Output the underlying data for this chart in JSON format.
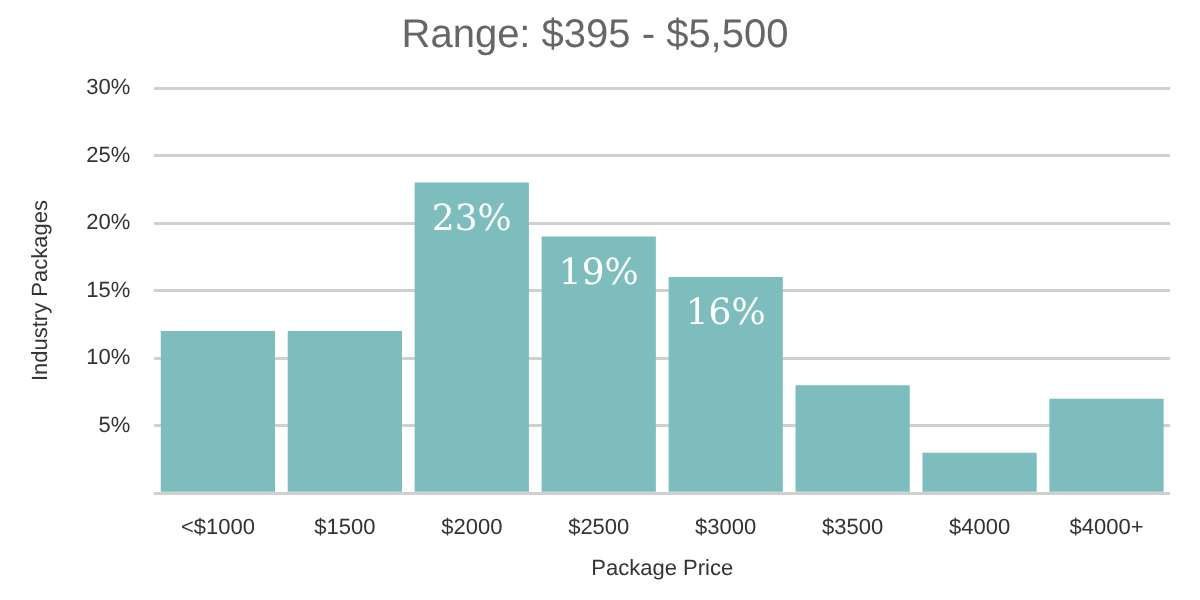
{
  "chart_data": {
    "type": "bar",
    "title": "Range: $395 - $5,500",
    "xlabel": "Package Price",
    "ylabel": "Industry Packages",
    "categories": [
      "<$1000",
      "$1500",
      "$2000",
      "$2500",
      "$3000",
      "$3500",
      "$4000",
      "$4000+"
    ],
    "values": [
      12,
      12,
      23,
      19,
      16,
      8,
      3,
      7
    ],
    "value_labels": [
      null,
      null,
      "23%",
      "19%",
      "16%",
      null,
      null,
      null
    ],
    "color": "#7dbdbd",
    "ylim": [
      0,
      30
    ],
    "yticks": [
      {
        "value": 0,
        "label": null
      },
      {
        "value": 5,
        "label": "5%"
      },
      {
        "value": 10,
        "label": "10%"
      },
      {
        "value": 15,
        "label": "15%"
      },
      {
        "value": 20,
        "label": "20%"
      },
      {
        "value": 25,
        "label": "25%"
      },
      {
        "value": 30,
        "label": "30%"
      }
    ],
    "grid": "y",
    "legend": false
  }
}
